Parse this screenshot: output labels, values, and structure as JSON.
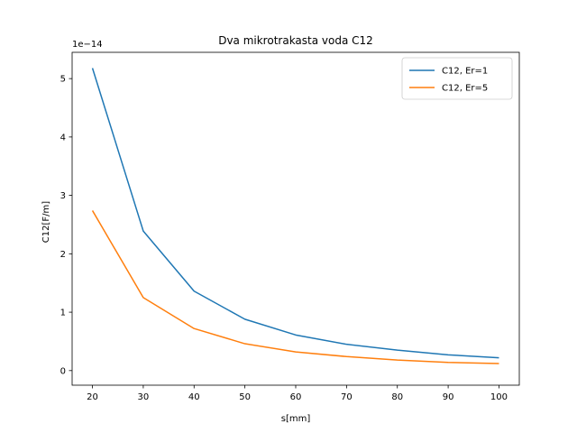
{
  "chart_data": {
    "type": "line",
    "title": "Dva mikrotrakasta voda C12",
    "xlabel": "s[mm]",
    "ylabel": "C12[F/m]",
    "y_offset_label": "1e−14",
    "y_scale": 1e-14,
    "x": [
      20,
      30,
      40,
      50,
      60,
      70,
      80,
      90,
      100
    ],
    "xlim": [
      16,
      104
    ],
    "ylim": [
      -0.25,
      5.45
    ],
    "xticks": [
      20,
      30,
      40,
      50,
      60,
      70,
      80,
      90,
      100
    ],
    "yticks": [
      0,
      1,
      2,
      3,
      4,
      5
    ],
    "grid": false,
    "legend_position": "top-right",
    "series": [
      {
        "name": "C12, Er=1",
        "color": "#1f77b4",
        "values": [
          5.18,
          2.39,
          1.36,
          0.88,
          0.61,
          0.45,
          0.35,
          0.27,
          0.22
        ]
      },
      {
        "name": "C12, Er=5",
        "color": "#ff7f0e",
        "values": [
          2.74,
          1.25,
          0.72,
          0.46,
          0.32,
          0.24,
          0.18,
          0.14,
          0.12
        ]
      }
    ]
  }
}
